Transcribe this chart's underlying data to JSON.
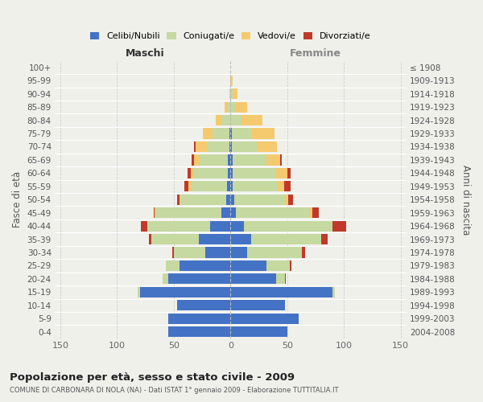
{
  "age_groups": [
    "0-4",
    "5-9",
    "10-14",
    "15-19",
    "20-24",
    "25-29",
    "30-34",
    "35-39",
    "40-44",
    "45-49",
    "50-54",
    "55-59",
    "60-64",
    "65-69",
    "70-74",
    "75-79",
    "80-84",
    "85-89",
    "90-94",
    "95-99",
    "100+"
  ],
  "birth_years": [
    "2004-2008",
    "1999-2003",
    "1994-1998",
    "1989-1993",
    "1984-1988",
    "1979-1983",
    "1974-1978",
    "1969-1973",
    "1964-1968",
    "1959-1963",
    "1954-1958",
    "1949-1953",
    "1944-1948",
    "1939-1943",
    "1934-1938",
    "1929-1933",
    "1924-1928",
    "1919-1923",
    "1914-1918",
    "1909-1913",
    "≤ 1908"
  ],
  "male_celibi": [
    55,
    55,
    47,
    80,
    55,
    45,
    22,
    28,
    18,
    8,
    4,
    3,
    2,
    2,
    1,
    1,
    0,
    0,
    0,
    0,
    0
  ],
  "male_coniugati": [
    0,
    0,
    0,
    2,
    5,
    12,
    28,
    42,
    55,
    58,
    40,
    32,
    30,
    25,
    20,
    15,
    8,
    3,
    1,
    0,
    0
  ],
  "male_vedovi": [
    0,
    0,
    0,
    0,
    0,
    0,
    0,
    0,
    0,
    1,
    1,
    2,
    3,
    5,
    10,
    8,
    5,
    2,
    0,
    0,
    0
  ],
  "male_divorziati": [
    0,
    0,
    0,
    0,
    0,
    0,
    1,
    2,
    6,
    1,
    2,
    4,
    3,
    2,
    1,
    0,
    0,
    0,
    0,
    0,
    0
  ],
  "female_nubili": [
    50,
    60,
    48,
    90,
    40,
    32,
    15,
    18,
    12,
    5,
    3,
    2,
    2,
    2,
    1,
    1,
    0,
    0,
    0,
    0,
    0
  ],
  "female_coniugate": [
    0,
    0,
    0,
    2,
    8,
    20,
    48,
    62,
    78,
    65,
    45,
    40,
    38,
    30,
    22,
    18,
    10,
    5,
    2,
    0,
    0
  ],
  "female_vedove": [
    0,
    0,
    0,
    0,
    0,
    0,
    0,
    0,
    0,
    2,
    3,
    5,
    10,
    12,
    18,
    20,
    18,
    10,
    4,
    2,
    0
  ],
  "female_divorziate": [
    0,
    0,
    0,
    0,
    1,
    2,
    3,
    6,
    12,
    6,
    4,
    6,
    3,
    1,
    0,
    0,
    0,
    0,
    0,
    0,
    0
  ],
  "color_celibi": "#4472c4",
  "color_coniugati": "#c5d9a0",
  "color_vedovi": "#f5c96e",
  "color_divorziati": "#c0392b",
  "background_color": "#f0f0eb",
  "grid_color": "#cccccc",
  "xlim": 155,
  "xticks": [
    -150,
    -100,
    -50,
    0,
    50,
    100,
    150
  ],
  "xtick_labels": [
    "150",
    "100",
    "50",
    "0",
    "50",
    "100",
    "150"
  ],
  "title": "Popolazione per età, sesso e stato civile - 2009",
  "subtitle": "COMUNE DI CARBONARA DI NOLA (NA) - Dati ISTAT 1° gennaio 2009 - Elaborazione TUTTITALIA.IT",
  "label_maschi": "Maschi",
  "label_femmine": "Femmine",
  "ylabel_left": "Fasce di età",
  "ylabel_right": "Anni di nascita",
  "legend_labels": [
    "Celibi/Nubili",
    "Coniugati/e",
    "Vedovi/e",
    "Divorziati/e"
  ]
}
